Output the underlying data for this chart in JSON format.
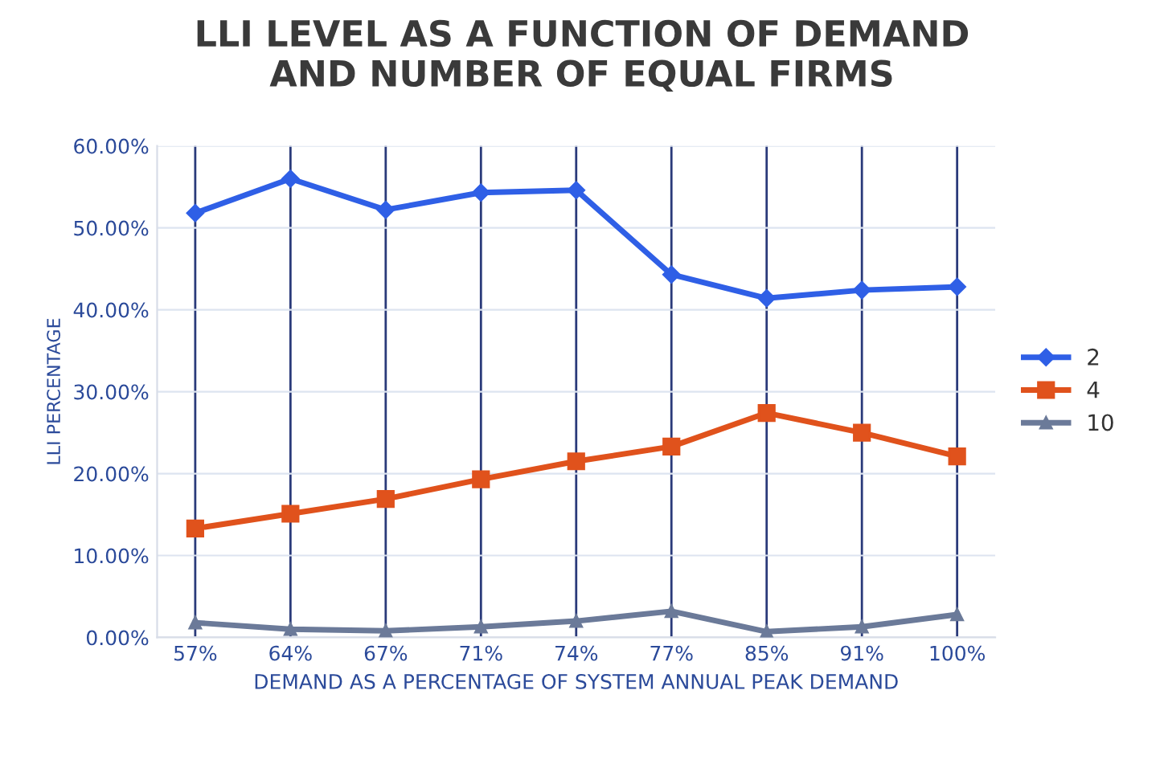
{
  "chart_data": {
    "type": "line",
    "title": "LLI LEVEL AS A FUNCTION OF DEMAND\nAND NUMBER OF EQUAL FIRMS",
    "xlabel": "DEMAND AS A PERCENTAGE OF SYSTEM ANNUAL PEAK DEMAND",
    "ylabel": "LLI PERCENTAGE",
    "categories": [
      "57%",
      "64%",
      "67%",
      "71%",
      "74%",
      "77%",
      "85%",
      "91%",
      "100%"
    ],
    "series": [
      {
        "name": "2",
        "color": "#2f5fe6",
        "marker": "diamond",
        "values": [
          51.8,
          56.0,
          52.2,
          54.3,
          54.6,
          44.3,
          41.4,
          42.4,
          42.8
        ]
      },
      {
        "name": "4",
        "color": "#e0521c",
        "marker": "square",
        "values": [
          13.3,
          15.1,
          16.9,
          19.3,
          21.5,
          23.3,
          27.4,
          25.0,
          22.1
        ]
      },
      {
        "name": "10",
        "color": "#6b7a99",
        "marker": "triangle",
        "values": [
          1.8,
          1.0,
          0.8,
          1.3,
          2.0,
          3.2,
          0.7,
          1.3,
          2.8
        ]
      }
    ],
    "ylim": [
      0,
      60
    ],
    "yticks": [
      {
        "value": 0,
        "label": "0.00%"
      },
      {
        "value": 10,
        "label": "10.00%"
      },
      {
        "value": 20,
        "label": "20.00%"
      },
      {
        "value": 30,
        "label": "30.00%"
      },
      {
        "value": 40,
        "label": "40.00%"
      },
      {
        "value": 50,
        "label": "50.00%"
      },
      {
        "value": 60,
        "label": "60.00%"
      }
    ],
    "grid": true,
    "legend": "right",
    "line_style": "solid"
  }
}
